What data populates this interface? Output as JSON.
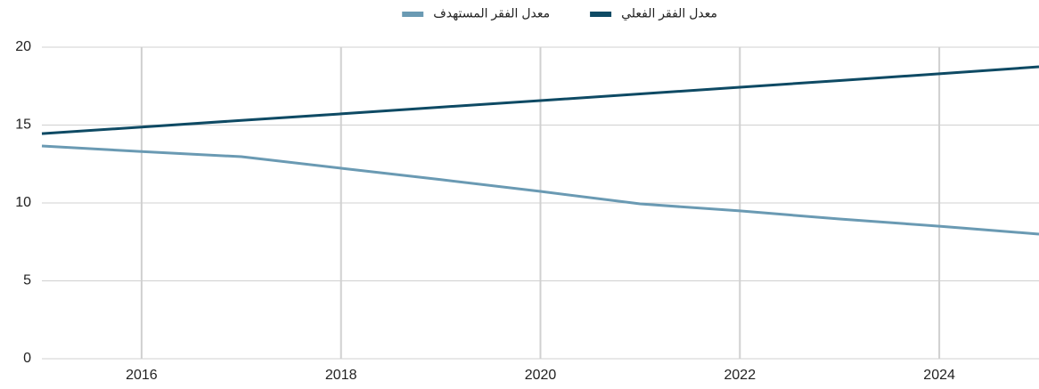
{
  "chart_data": {
    "type": "line",
    "x": [
      2015,
      2016,
      2017,
      2018,
      2019,
      2020,
      2021,
      2022,
      2023,
      2024,
      2025
    ],
    "series": [
      {
        "name": "معدل الفقر الفعلي",
        "color": "#0e4a64",
        "values": [
          14.45,
          14.87,
          15.3,
          15.72,
          16.15,
          16.57,
          17.0,
          17.43,
          17.86,
          18.29,
          18.74
        ]
      },
      {
        "name": "معدل الفقر المستهدف",
        "color": "#6a9ab3",
        "values": [
          13.66,
          13.3,
          12.97,
          12.23,
          11.5,
          10.74,
          9.94,
          9.49,
          8.97,
          8.51,
          8.0
        ]
      }
    ],
    "xlim": [
      2015,
      2025
    ],
    "xticks": [
      2016,
      2018,
      2020,
      2022,
      2024
    ],
    "ylim": [
      0,
      20
    ],
    "yticks": [
      0,
      5,
      10,
      15,
      20
    ],
    "grid": true,
    "legend": "top"
  }
}
